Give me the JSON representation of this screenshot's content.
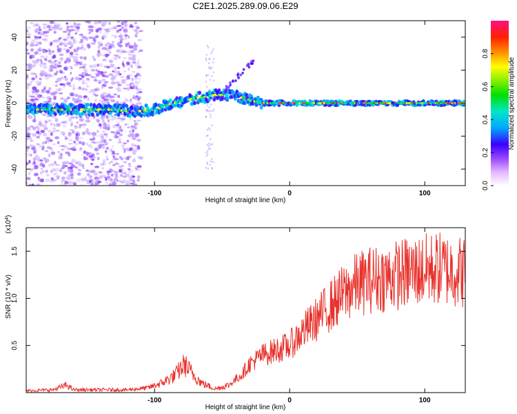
{
  "title": "C2E1.2025.289.09.06.E29",
  "chart_data": [
    {
      "type": "heatmap",
      "xlabel": "Height of straight line (km)",
      "ylabel": "Frequency (Hz)",
      "xlim": [
        -195,
        130
      ],
      "ylim": [
        -50,
        50
      ],
      "xticks": [
        -100,
        0,
        100
      ],
      "xtick_labels": [
        "-100",
        "0",
        "100"
      ],
      "yticks": [
        -40,
        -20,
        0,
        20,
        40
      ],
      "ytick_labels": [
        "-40",
        "-20",
        "0",
        "20",
        "40"
      ],
      "trace": [
        {
          "x": -195,
          "y": -4
        },
        {
          "x": -160,
          "y": -4
        },
        {
          "x": -130,
          "y": -4
        },
        {
          "x": -115,
          "y": -5
        },
        {
          "x": -100,
          "y": -4
        },
        {
          "x": -90,
          "y": -1
        },
        {
          "x": -80,
          "y": 1
        },
        {
          "x": -70,
          "y": 3
        },
        {
          "x": -60,
          "y": 4
        },
        {
          "x": -55,
          "y": 5
        },
        {
          "x": -45,
          "y": 5
        },
        {
          "x": -38,
          "y": 4
        },
        {
          "x": -30,
          "y": 2
        },
        {
          "x": -20,
          "y": 0
        },
        {
          "x": 0,
          "y": 0
        },
        {
          "x": 130,
          "y": 0
        }
      ],
      "colorbar": {
        "label": "Normalized spectral amplitude",
        "range": [
          0,
          1
        ],
        "ticks": [
          0,
          0.2,
          0.4,
          0.6,
          0.8
        ],
        "tick_labels": [
          "0.0",
          "0.2",
          "0.4",
          "0.6",
          "0.8"
        ]
      }
    },
    {
      "type": "line",
      "xlabel": "Height of straight line (km)",
      "ylabel": "SNR (10 * v/v)",
      "y_scale_label": "(x10",
      "y_scale_exponent": "4",
      "xlim": [
        -195,
        130
      ],
      "ylim": [
        0,
        1.75
      ],
      "xticks": [
        -100,
        0,
        100
      ],
      "xtick_labels": [
        "-100",
        "0",
        "100"
      ],
      "yticks": [
        0.5,
        1.0,
        1.5
      ],
      "ytick_labels": [
        "0.5",
        "1.0",
        "1.5"
      ],
      "series": [
        {
          "name": "SNR",
          "color": "#e8312b",
          "envelope": [
            {
              "x": -195,
              "y": 0.02
            },
            {
              "x": -175,
              "y": 0.03
            },
            {
              "x": -165,
              "y": 0.08
            },
            {
              "x": -160,
              "y": 0.03
            },
            {
              "x": -120,
              "y": 0.03
            },
            {
              "x": -105,
              "y": 0.05
            },
            {
              "x": -95,
              "y": 0.1
            },
            {
              "x": -85,
              "y": 0.18
            },
            {
              "x": -78,
              "y": 0.3
            },
            {
              "x": -72,
              "y": 0.2
            },
            {
              "x": -65,
              "y": 0.1
            },
            {
              "x": -55,
              "y": 0.04
            },
            {
              "x": -45,
              "y": 0.08
            },
            {
              "x": -35,
              "y": 0.2
            },
            {
              "x": -30,
              "y": 0.3
            },
            {
              "x": -20,
              "y": 0.4
            },
            {
              "x": -10,
              "y": 0.45
            },
            {
              "x": 0,
              "y": 0.5
            },
            {
              "x": 10,
              "y": 0.65
            },
            {
              "x": 20,
              "y": 0.78
            },
            {
              "x": 30,
              "y": 0.92
            },
            {
              "x": 40,
              "y": 1.05
            },
            {
              "x": 50,
              "y": 1.15
            },
            {
              "x": 60,
              "y": 1.2
            },
            {
              "x": 70,
              "y": 1.22
            },
            {
              "x": 80,
              "y": 1.25
            },
            {
              "x": 90,
              "y": 1.28
            },
            {
              "x": 100,
              "y": 1.3
            },
            {
              "x": 110,
              "y": 1.32
            },
            {
              "x": 120,
              "y": 1.3
            },
            {
              "x": 130,
              "y": 1.28
            }
          ]
        }
      ]
    }
  ]
}
